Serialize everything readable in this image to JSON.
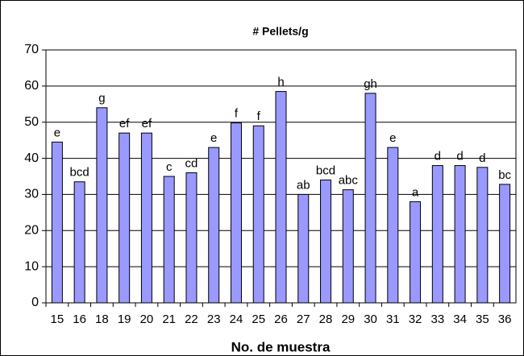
{
  "chart_data": {
    "type": "bar",
    "title": "# Pellets/g",
    "x_label": "No. de muestra",
    "categories": [
      "15",
      "16",
      "18",
      "19",
      "20",
      "21",
      "22",
      "23",
      "24",
      "25",
      "26",
      "27",
      "28",
      "29",
      "30",
      "31",
      "32",
      "33",
      "34",
      "35",
      "36"
    ],
    "values": [
      44.5,
      33.5,
      54,
      47,
      47,
      35,
      36,
      43,
      49.8,
      49,
      58.5,
      30,
      34,
      31.3,
      58,
      43,
      28,
      38,
      38,
      37.5,
      32.8
    ],
    "annotations": [
      "e",
      "bcd",
      "g",
      "ef",
      "ef",
      "c",
      "cd",
      "e",
      "f",
      "f",
      "h",
      "ab",
      "bcd",
      "abc",
      "gh",
      "e",
      "a",
      "d",
      "d",
      "d",
      "bc"
    ],
    "color": "#9999ff",
    "ylim": [
      0,
      70
    ],
    "yticks": [
      0,
      10,
      20,
      30,
      40,
      50,
      60,
      70
    ],
    "grid": true
  }
}
